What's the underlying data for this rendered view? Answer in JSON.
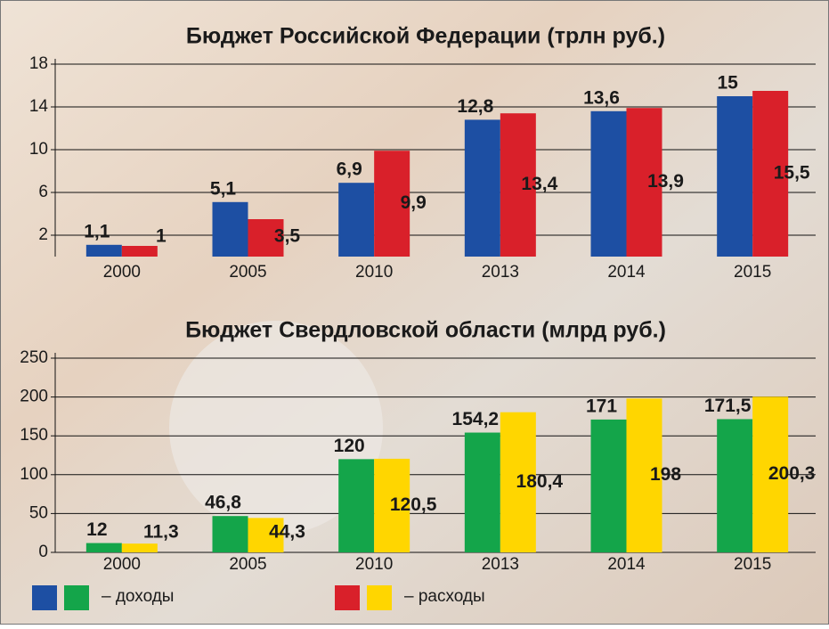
{
  "chart_data": [
    {
      "type": "bar",
      "title": "Бюджет Российской Федерации (трлн руб.)",
      "categories": [
        "2000",
        "2005",
        "2010",
        "2013",
        "2014",
        "2015"
      ],
      "series": [
        {
          "color": "#1d4fa3",
          "values": [
            1.1,
            5.1,
            6.9,
            12.8,
            13.6,
            15
          ],
          "value_labels": [
            "1,1",
            "5,1",
            "6,9",
            "12,8",
            "13,6",
            "15"
          ]
        },
        {
          "color": "#d9202a",
          "values": [
            1,
            3.5,
            9.9,
            13.4,
            13.9,
            15.5
          ],
          "value_labels": [
            "1",
            "3,5",
            "9,9",
            "13,4",
            "13,9",
            "15,5"
          ]
        }
      ],
      "ylim": [
        0,
        18
      ],
      "yticks": [
        2,
        6,
        10,
        14,
        18
      ],
      "grid": true
    },
    {
      "type": "bar",
      "title": "Бюджет Свердловской области (млрд руб.)",
      "categories": [
        "2000",
        "2005",
        "2010",
        "2013",
        "2014",
        "2015"
      ],
      "series": [
        {
          "color": "#14a54a",
          "values": [
            12,
            46.8,
            120,
            154.2,
            171,
            171.5
          ],
          "value_labels": [
            "12",
            "46,8",
            "120",
            "154,2",
            "171",
            "171,5"
          ]
        },
        {
          "color": "#ffd600",
          "values": [
            11.3,
            44.3,
            120.5,
            180.4,
            198,
            200.3
          ],
          "value_labels": [
            "11,3",
            "44,3",
            "120,5",
            "180,4",
            "198",
            "200,3"
          ]
        }
      ],
      "ylim": [
        0,
        250
      ],
      "yticks": [
        0,
        50,
        100,
        150,
        200,
        250
      ],
      "grid": true
    }
  ],
  "legend": {
    "items": [
      {
        "colors": [
          "#1d4fa3",
          "#14a54a"
        ],
        "label": "– доходы"
      },
      {
        "colors": [
          "#d9202a",
          "#ffd600"
        ],
        "label": "– расходы"
      }
    ]
  }
}
